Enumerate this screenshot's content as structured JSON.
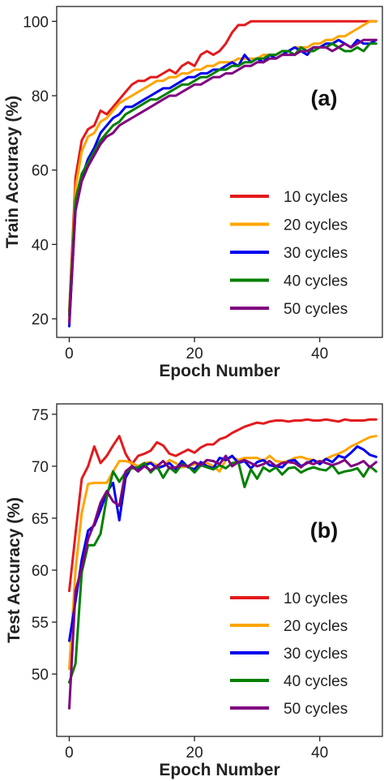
{
  "chart_data": [
    {
      "type": "line",
      "panel_label": "(a)",
      "xlabel": "Epoch Number",
      "ylabel": "Train Accuracy (%)",
      "xlim": [
        -2,
        50
      ],
      "ylim": [
        15,
        104
      ],
      "xticks": [
        0,
        20,
        40
      ],
      "yticks": [
        20,
        40,
        60,
        80,
        100
      ],
      "grid": false,
      "legend_position": "lower-right",
      "x": [
        0,
        1,
        2,
        3,
        4,
        5,
        6,
        7,
        8,
        9,
        10,
        11,
        12,
        13,
        14,
        15,
        16,
        17,
        18,
        19,
        20,
        21,
        22,
        23,
        24,
        25,
        26,
        27,
        28,
        29,
        30,
        31,
        32,
        33,
        34,
        35,
        36,
        37,
        38,
        39,
        40,
        41,
        42,
        43,
        44,
        45,
        46,
        47,
        48,
        49
      ],
      "series": [
        {
          "name": "10 cycles",
          "color": "#e41a1c",
          "values": [
            22,
            58,
            68,
            71,
            72,
            76,
            75,
            77,
            79,
            81,
            83,
            84,
            84,
            85,
            85,
            86,
            87,
            86,
            88,
            89,
            88,
            91,
            92,
            91,
            92,
            94,
            97,
            99,
            99,
            100,
            100,
            100,
            100,
            100,
            100,
            100,
            100,
            100,
            100,
            100,
            100,
            100,
            100,
            100,
            100,
            100,
            100,
            100,
            100,
            100
          ]
        },
        {
          "name": "20 cycles",
          "color": "#ffa500",
          "values": [
            20,
            55,
            65,
            69,
            70,
            73,
            74,
            76,
            78,
            79,
            80,
            81,
            82,
            83,
            84,
            84,
            85,
            85,
            86,
            86,
            87,
            87,
            88,
            88,
            89,
            89,
            89,
            90,
            90,
            90,
            90,
            91,
            91,
            91,
            92,
            92,
            93,
            93,
            93,
            94,
            94,
            95,
            95,
            96,
            96,
            97,
            98,
            99,
            100,
            100
          ]
        },
        {
          "name": "30 cycles",
          "color": "#0000ee",
          "values": [
            18,
            50,
            58,
            63,
            66,
            70,
            72,
            74,
            75,
            77,
            77,
            78,
            79,
            80,
            81,
            82,
            82,
            83,
            84,
            85,
            85,
            86,
            86,
            87,
            87,
            88,
            89,
            88,
            91,
            89,
            90,
            89,
            91,
            90,
            91,
            92,
            93,
            92,
            91,
            93,
            93,
            94,
            94,
            95,
            94,
            93,
            95,
            94,
            94,
            95
          ]
        },
        {
          "name": "40 cycles",
          "color": "#008000",
          "values": [
            21,
            52,
            59,
            62,
            65,
            68,
            70,
            72,
            73,
            75,
            76,
            77,
            78,
            79,
            79,
            80,
            81,
            82,
            83,
            83,
            84,
            85,
            85,
            86,
            87,
            87,
            88,
            88,
            89,
            89,
            90,
            90,
            91,
            91,
            92,
            92,
            91,
            93,
            92,
            92,
            93,
            93,
            94,
            93,
            92,
            92,
            93,
            92,
            94,
            94
          ]
        },
        {
          "name": "50 cycles",
          "color": "#800080",
          "values": [
            19,
            49,
            57,
            61,
            64,
            67,
            69,
            70,
            72,
            73,
            74,
            75,
            76,
            77,
            78,
            79,
            80,
            80,
            81,
            82,
            83,
            83,
            84,
            85,
            85,
            86,
            86,
            87,
            88,
            88,
            89,
            89,
            90,
            90,
            91,
            91,
            91,
            92,
            92,
            93,
            93,
            93,
            92,
            93,
            94,
            93,
            94,
            95,
            95,
            95
          ]
        }
      ]
    },
    {
      "type": "line",
      "panel_label": "(b)",
      "xlabel": "Epoch Number",
      "ylabel": "Test Accuracy (%)",
      "xlim": [
        -2,
        50
      ],
      "ylim": [
        44,
        76
      ],
      "xticks": [
        0,
        20,
        40
      ],
      "yticks": [
        50,
        55,
        60,
        65,
        70,
        75
      ],
      "grid": false,
      "legend_position": "lower-right",
      "x": [
        0,
        1,
        2,
        3,
        4,
        5,
        6,
        7,
        8,
        9,
        10,
        11,
        12,
        13,
        14,
        15,
        16,
        17,
        18,
        19,
        20,
        21,
        22,
        23,
        24,
        25,
        26,
        27,
        28,
        29,
        30,
        31,
        32,
        33,
        34,
        35,
        36,
        37,
        38,
        39,
        40,
        41,
        42,
        43,
        44,
        45,
        46,
        47,
        48,
        49
      ],
      "series": [
        {
          "name": "10 cycles",
          "color": "#e41a1c",
          "values": [
            58.0,
            63.5,
            68.8,
            70.0,
            71.9,
            70.3,
            71.0,
            72.0,
            72.9,
            71.2,
            70.2,
            71.0,
            71.2,
            71.5,
            72.3,
            72.0,
            71.2,
            71.0,
            71.3,
            71.6,
            71.3,
            71.8,
            72.1,
            72.1,
            72.6,
            72.8,
            73.2,
            73.5,
            73.8,
            74.0,
            74.2,
            74.1,
            74.3,
            74.4,
            74.4,
            74.3,
            74.4,
            74.4,
            74.5,
            74.4,
            74.4,
            74.5,
            74.4,
            74.3,
            74.5,
            74.4,
            74.4,
            74.4,
            74.5,
            74.5
          ]
        },
        {
          "name": "20 cycles",
          "color": "#ffa500",
          "values": [
            50.5,
            60.0,
            65.5,
            68.3,
            68.4,
            68.4,
            68.4,
            69.5,
            70.5,
            70.5,
            70.3,
            70.0,
            70.3,
            70.4,
            70.1,
            70.0,
            70.6,
            70.3,
            69.9,
            70.0,
            70.2,
            70.2,
            70.3,
            70.0,
            69.5,
            70.6,
            70.9,
            70.6,
            70.8,
            70.8,
            70.8,
            70.5,
            71.0,
            70.5,
            70.4,
            70.5,
            70.8,
            70.9,
            70.7,
            70.6,
            70.4,
            70.7,
            71.0,
            71.2,
            71.5,
            71.9,
            72.2,
            72.5,
            72.8,
            72.9
          ]
        },
        {
          "name": "30 cycles",
          "color": "#0000ee",
          "values": [
            53.2,
            57.0,
            61.0,
            63.8,
            64.3,
            65.8,
            67.5,
            68.4,
            64.8,
            68.9,
            70.0,
            69.7,
            70.1,
            70.3,
            69.8,
            70.0,
            70.3,
            69.7,
            70.5,
            69.9,
            69.7,
            70.4,
            70.0,
            69.8,
            70.8,
            70.6,
            71.0,
            70.3,
            70.5,
            69.8,
            70.4,
            70.6,
            70.1,
            70.0,
            69.9,
            70.5,
            70.6,
            70.0,
            70.3,
            70.6,
            70.2,
            70.7,
            70.4,
            71.0,
            70.8,
            71.3,
            71.9,
            71.6,
            71.1,
            70.9
          ]
        },
        {
          "name": "40 cycles",
          "color": "#008000",
          "values": [
            49.2,
            51.0,
            59.8,
            62.4,
            62.4,
            63.5,
            67.0,
            69.5,
            68.5,
            69.4,
            69.8,
            69.9,
            70.3,
            69.4,
            70.0,
            68.9,
            69.9,
            69.4,
            70.2,
            70.0,
            69.4,
            70.1,
            69.9,
            69.7,
            70.1,
            69.8,
            70.3,
            70.4,
            68.0,
            69.7,
            68.8,
            69.9,
            69.5,
            69.9,
            69.2,
            69.8,
            69.9,
            69.4,
            69.7,
            69.9,
            69.7,
            69.6,
            70.1,
            69.3,
            69.5,
            69.6,
            69.8,
            69.0,
            70.0,
            69.5
          ]
        },
        {
          "name": "50 cycles",
          "color": "#800080",
          "values": [
            46.7,
            58.0,
            60.2,
            63.0,
            64.5,
            66.5,
            67.6,
            66.6,
            66.2,
            69.5,
            70.0,
            69.5,
            70.0,
            69.6,
            70.0,
            70.5,
            69.8,
            69.9,
            70.1,
            70.0,
            70.4,
            70.1,
            70.6,
            70.5,
            70.2,
            71.0,
            70.0,
            70.4,
            70.6,
            70.3,
            70.0,
            70.2,
            70.5,
            70.0,
            70.3,
            70.4,
            70.3,
            69.9,
            70.4,
            70.2,
            70.5,
            70.3,
            70.1,
            70.3,
            70.6,
            70.0,
            70.2,
            70.5,
            69.9,
            70.4
          ]
        }
      ]
    }
  ]
}
